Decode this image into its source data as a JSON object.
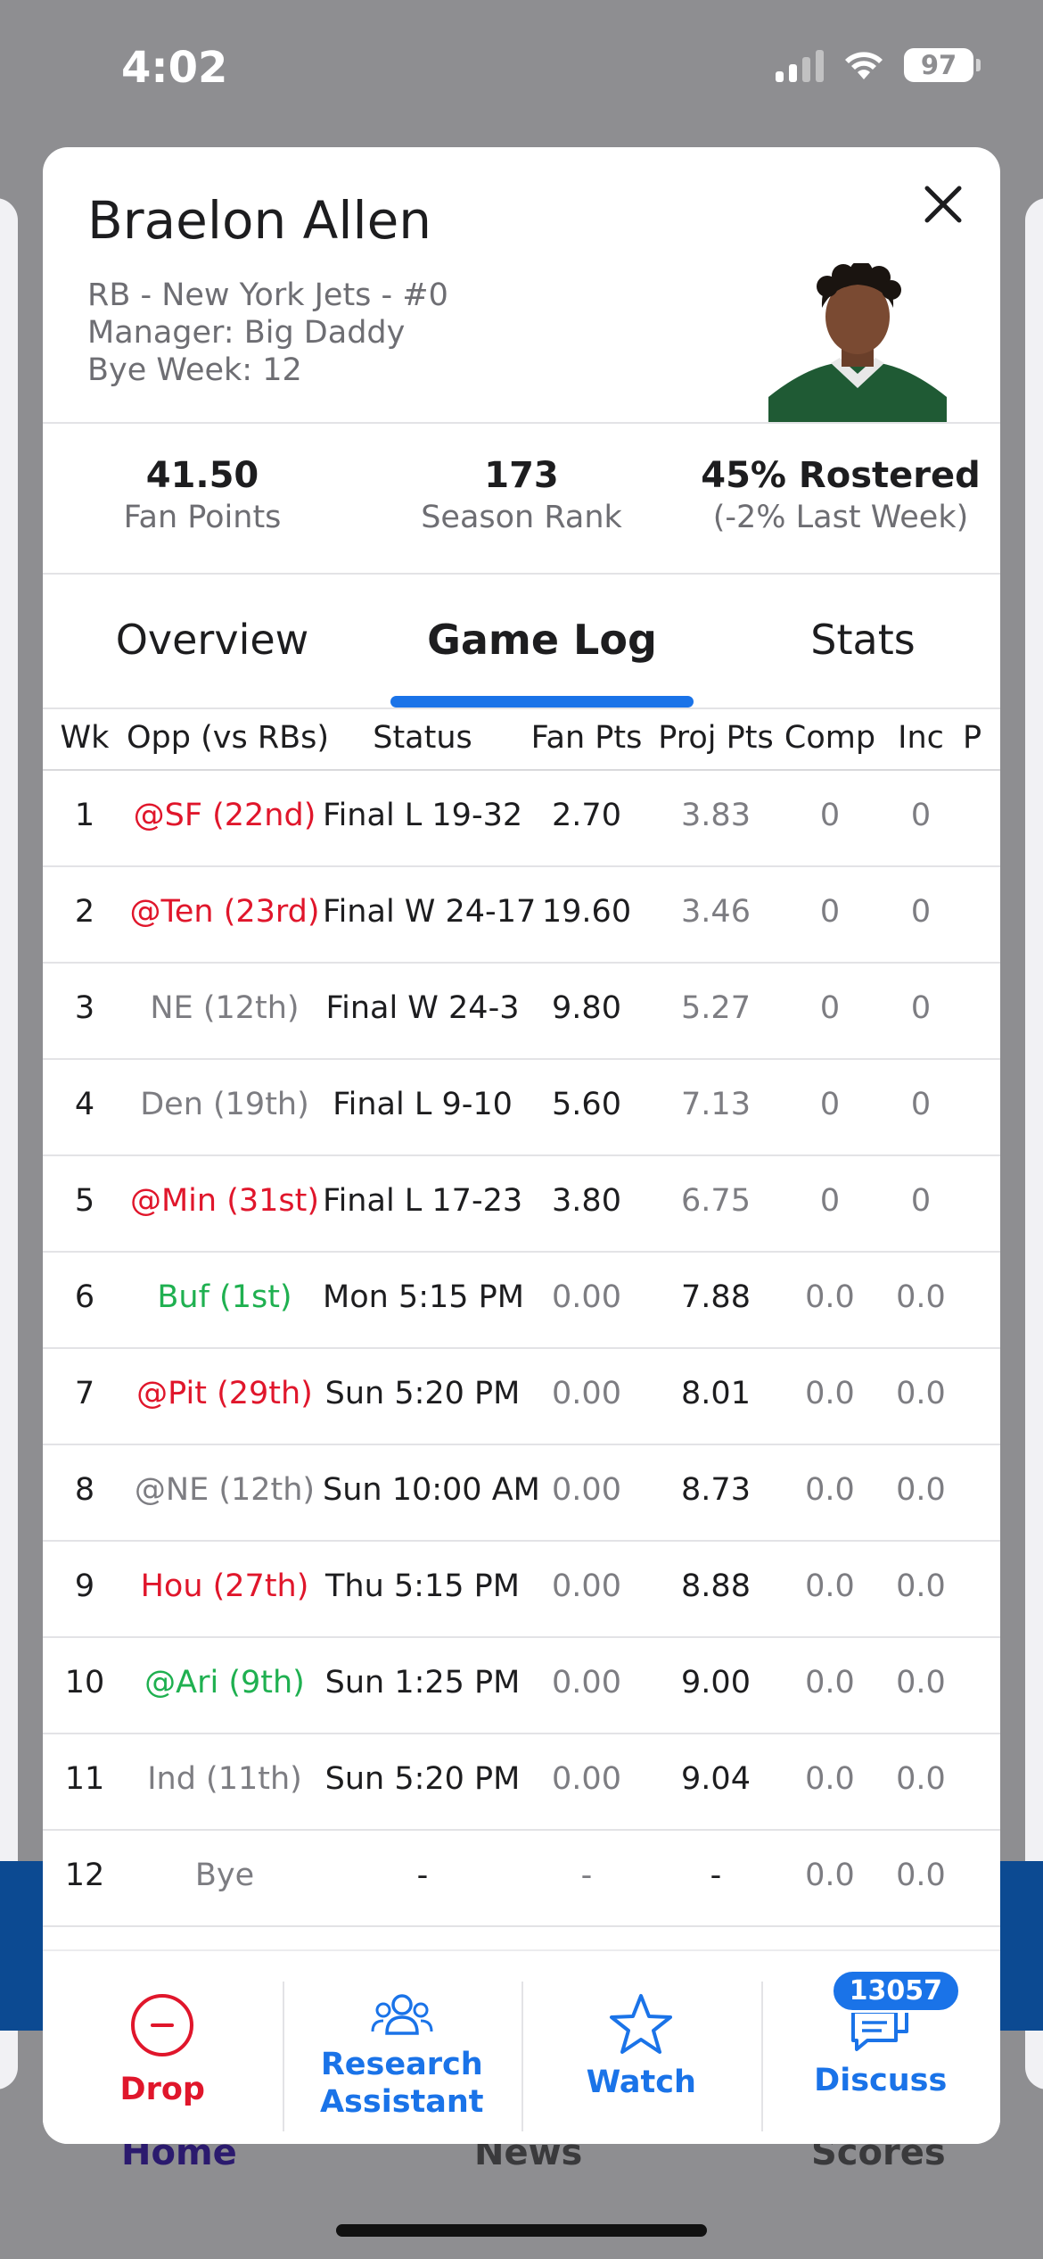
{
  "status_bar": {
    "time": "4:02",
    "battery": "97"
  },
  "player": {
    "name": "Braelon Allen",
    "position_team": "RB - New York Jets - #0",
    "manager": "Manager: Big Daddy",
    "bye": "Bye Week: 12"
  },
  "summary": [
    {
      "value": "41.50",
      "label": "Fan Points"
    },
    {
      "value": "173",
      "label": "Season Rank"
    },
    {
      "value": "45% Rostered",
      "label": "(-2% Last Week)"
    }
  ],
  "tabs": [
    "Overview",
    "Game Log",
    "Stats"
  ],
  "active_tab": "Game Log",
  "table": {
    "headers": [
      "Wk",
      "Opp (vs RBs)",
      "Status",
      "Fan Pts",
      "Proj Pts",
      "Comp",
      "Inc",
      "P"
    ],
    "rows": [
      {
        "wk": "1",
        "opp": "@SF (22nd)",
        "opp_color": "red",
        "status": "Final L 19-32",
        "fan": "2.70",
        "proj": "3.83",
        "comp": "0",
        "inc": "0"
      },
      {
        "wk": "2",
        "opp": "@Ten (23rd)",
        "opp_color": "red",
        "status": "Final W 24-17",
        "fan": "19.60",
        "proj": "3.46",
        "comp": "0",
        "inc": "0"
      },
      {
        "wk": "3",
        "opp": "NE (12th)",
        "opp_color": "gray",
        "status": "Final W 24-3",
        "fan": "9.80",
        "proj": "5.27",
        "comp": "0",
        "inc": "0"
      },
      {
        "wk": "4",
        "opp": "Den (19th)",
        "opp_color": "gray",
        "status": "Final L 9-10",
        "fan": "5.60",
        "proj": "7.13",
        "comp": "0",
        "inc": "0"
      },
      {
        "wk": "5",
        "opp": "@Min (31st)",
        "opp_color": "red",
        "status": "Final L 17-23",
        "fan": "3.80",
        "proj": "6.75",
        "comp": "0",
        "inc": "0"
      },
      {
        "wk": "6",
        "opp": "Buf (1st)",
        "opp_color": "green",
        "status": "Mon 5:15 PM",
        "fan": "0.00",
        "proj": "7.88",
        "comp": "0.0",
        "inc": "0.0"
      },
      {
        "wk": "7",
        "opp": "@Pit (29th)",
        "opp_color": "red",
        "status": "Sun 5:20 PM",
        "fan": "0.00",
        "proj": "8.01",
        "comp": "0.0",
        "inc": "0.0"
      },
      {
        "wk": "8",
        "opp": "@NE (12th)",
        "opp_color": "gray",
        "status": "Sun 10:00 AM",
        "fan": "0.00",
        "proj": "8.73",
        "comp": "0.0",
        "inc": "0.0"
      },
      {
        "wk": "9",
        "opp": "Hou (27th)",
        "opp_color": "red",
        "status": "Thu 5:15 PM",
        "fan": "0.00",
        "proj": "8.88",
        "comp": "0.0",
        "inc": "0.0"
      },
      {
        "wk": "10",
        "opp": "@Ari (9th)",
        "opp_color": "green",
        "status": "Sun 1:25 PM",
        "fan": "0.00",
        "proj": "9.00",
        "comp": "0.0",
        "inc": "0.0"
      },
      {
        "wk": "11",
        "opp": "Ind (11th)",
        "opp_color": "gray",
        "status": "Sun 5:20 PM",
        "fan": "0.00",
        "proj": "9.04",
        "comp": "0.0",
        "inc": "0.0"
      },
      {
        "wk": "12",
        "opp": "Bye",
        "opp_color": "gray",
        "status": "-",
        "fan": "-",
        "proj": "-",
        "comp": "0.0",
        "inc": "0.0"
      }
    ]
  },
  "actions": {
    "drop": "Drop",
    "research_line1": "Research",
    "research_line2": "Assistant",
    "watch": "Watch",
    "discuss": "Discuss",
    "discuss_count": "13057"
  },
  "background_tabs": [
    "Home",
    "News",
    "Scores"
  ],
  "colors": {
    "accent": "#1a73e8",
    "red": "#e0162b",
    "green": "#1fb050"
  }
}
